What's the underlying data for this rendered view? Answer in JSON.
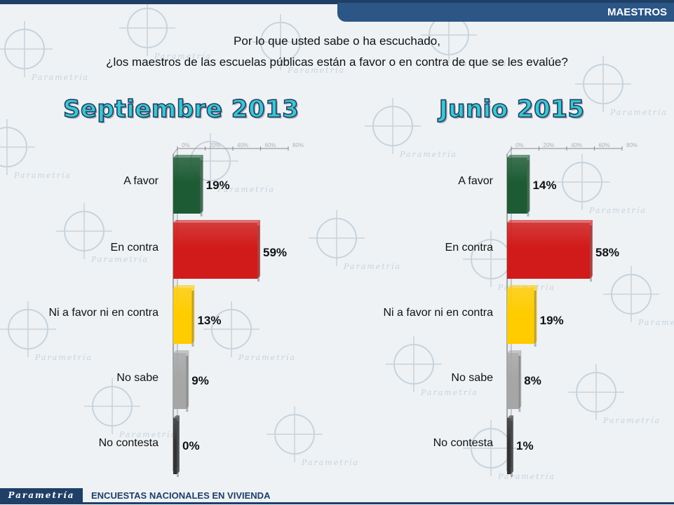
{
  "header": {
    "section_label": "MAESTROS"
  },
  "question": {
    "line1": "Por lo que usted sabe o ha escuchado,",
    "line2": "¿los maestros de las escuelas públicas están a favor o en contra de que se les evalúe?"
  },
  "watermark": {
    "brand": "Parametría"
  },
  "footer": {
    "brand": "Parametría",
    "text": "ENCUESTAS NACIONALES  EN VIVIENDA"
  },
  "colors": {
    "a_favor": "#1d5b34",
    "en_contra": "#d11a1a",
    "ni": "#ffcc00",
    "no_sabe": "#a6a6a6",
    "no_contesta": "#333333",
    "title": "#3ec6cf"
  },
  "chart_data": [
    {
      "type": "bar",
      "orientation": "horizontal",
      "title": "Septiembre 2013",
      "categories": [
        "A favor",
        "En contra",
        "Ni a favor ni en contra",
        "No sabe",
        "No contesta"
      ],
      "values": [
        19,
        59,
        13,
        9,
        0
      ],
      "value_labels": [
        "19%",
        "59%",
        "13%",
        "9%",
        "0%"
      ],
      "xlim": [
        0,
        80
      ],
      "x_ticks": [
        "0%",
        "20%",
        "40%",
        "60%",
        "80%"
      ]
    },
    {
      "type": "bar",
      "orientation": "horizontal",
      "title": "Junio 2015",
      "categories": [
        "A favor",
        "En contra",
        "Ni a favor ni en contra",
        "No sabe",
        "No contesta"
      ],
      "values": [
        14,
        58,
        19,
        8,
        1
      ],
      "value_labels": [
        "14%",
        "58%",
        "19%",
        "8%",
        "1%"
      ],
      "xlim": [
        0,
        80
      ],
      "x_ticks": [
        "0%",
        "20%",
        "40%",
        "60%",
        "80%"
      ]
    }
  ]
}
